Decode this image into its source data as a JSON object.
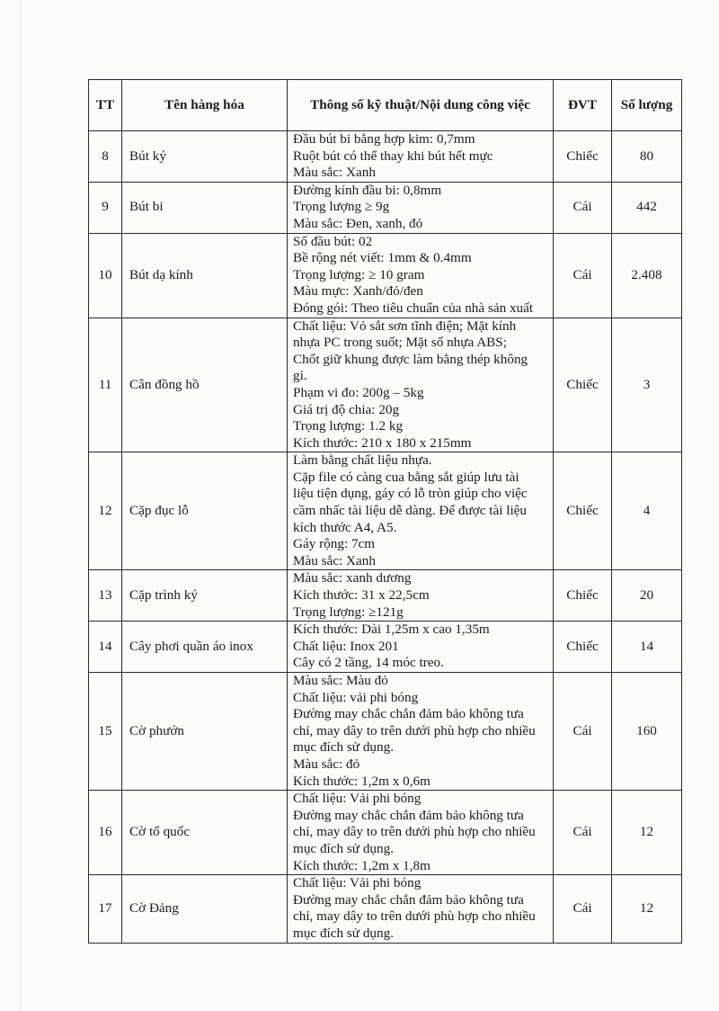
{
  "header": {
    "tt": "TT",
    "name": "Tên hàng hóa",
    "spec": "Thông số kỹ thuật/Nội dung công việc",
    "unit": "ĐVT",
    "qty": "Số lượng"
  },
  "rows": [
    {
      "tt": "8",
      "name": "Bút ký",
      "specs": [
        "Đầu bút bi bằng hợp kim: 0,7mm",
        "Ruột bút có thể thay khi bút hết mực",
        "Màu sắc: Xanh"
      ],
      "unit": "Chiếc",
      "qty": "80"
    },
    {
      "tt": "9",
      "name": "Bút bi",
      "specs": [
        "Đường kính đầu bi: 0,8mm",
        "Trọng lượng ≥ 9g",
        "Màu sắc: Đen, xanh, đỏ"
      ],
      "unit": "Cái",
      "qty": "442"
    },
    {
      "tt": "10",
      "name": "Bút dạ kính",
      "specs": [
        "Số đầu bút: 02",
        "Bề rộng nét viết: 1mm & 0.4mm",
        "Trọng lượng: ≥ 10 gram",
        "Màu mực: Xanh/đỏ/đen",
        "Đóng gói: Theo tiêu chuẩn của nhà sản xuất"
      ],
      "unit": "Cái",
      "qty": "2.408"
    },
    {
      "tt": "11",
      "name": "Cân đồng hồ",
      "specs": [
        "Chất liệu: Vỏ sắt sơn tĩnh điện; Mặt kính",
        "nhựa PC trong suốt; Mặt số nhựa ABS;",
        "Chốt giữ khung được làm bằng thép không",
        "gỉ.",
        "Phạm vi đo: 200g – 5kg",
        "Giá trị độ chia: 20g",
        "Trọng lượng: 1.2 kg",
        "Kích thước: 210 x 180 x 215mm"
      ],
      "unit": "Chiếc",
      "qty": "3"
    },
    {
      "tt": "12",
      "name": "Cặp đục lỗ",
      "specs": [
        "Làm bằng chất liệu nhựa.",
        "Cặp file có càng cua bằng sắt giúp lưu tài",
        "liệu tiện dụng, gáy có lỗ tròn giúp cho việc",
        "cầm nhấc tài liệu dễ dàng. Để được tài liệu",
        "kích thước A4, A5.",
        "Gáy rộng: 7cm",
        "Màu sắc: Xanh"
      ],
      "unit": "Chiếc",
      "qty": "4"
    },
    {
      "tt": "13",
      "name": "Cặp trình ký",
      "specs": [
        "Màu sắc: xanh dương",
        "Kích thước: 31 x 22,5cm",
        "Trọng lượng: ≥121g"
      ],
      "unit": "Chiếc",
      "qty": "20"
    },
    {
      "tt": "14",
      "name": "Cây phơi quần áo inox",
      "specs": [
        "Kích thước: Dài 1,25m x cao 1,35m",
        "Chất liệu: Inox 201",
        "Cây có 2 tầng, 14 móc treo."
      ],
      "unit": "Chiếc",
      "qty": "14"
    },
    {
      "tt": "15",
      "name": "Cờ phướn",
      "specs": [
        "Màu sắc: Màu đỏ",
        "Chất liệu: vải phi bóng",
        "Đường may chắc chắn đảm bảo không tưa",
        "chỉ, may dây to trên dưới phù hợp cho nhiều",
        "mục đích sử dụng.",
        "Màu sắc: đỏ",
        "Kích thước: 1,2m x 0,6m"
      ],
      "unit": "Cái",
      "qty": "160"
    },
    {
      "tt": "16",
      "name": "Cờ tổ quốc",
      "specs": [
        "Chất liệu: Vải phi bóng",
        "Đường may chắc chắn đảm bảo không tưa",
        "chỉ, may dây to trên dưới phù hợp cho nhiều",
        "mục đích sử dụng.",
        "Kích thước: 1,2m x 1,8m"
      ],
      "unit": "Cái",
      "qty": "12"
    },
    {
      "tt": "17",
      "name": "Cờ Đảng",
      "specs": [
        "Chất liệu: Vải phi bóng",
        "Đường may chắc chắn đảm bảo không tưa",
        "chỉ, may dây to trên dưới phù hợp cho nhiều",
        "mục đích sử dụng."
      ],
      "unit": "Cái",
      "qty": "12"
    }
  ]
}
